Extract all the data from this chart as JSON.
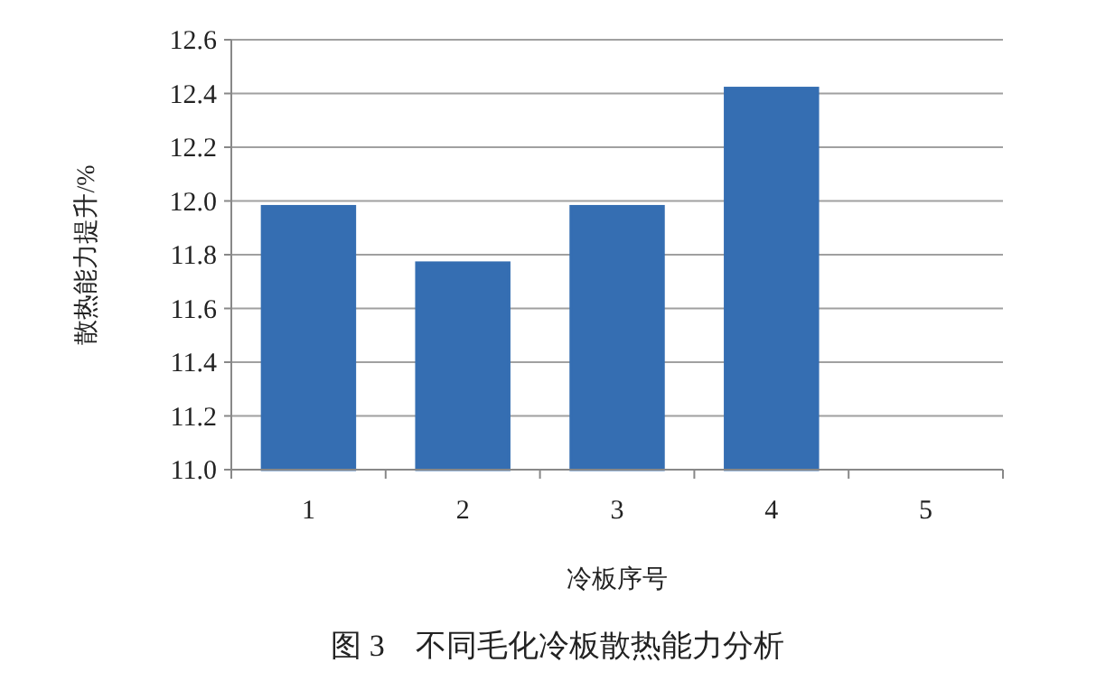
{
  "chart_data": {
    "type": "bar",
    "title": "图 3　不同毛化冷板散热能力分析",
    "xlabel": "冷板序号",
    "ylabel": "散热能力提升/%",
    "categories": [
      "1",
      "2",
      "3",
      "4",
      "5"
    ],
    "values": [
      11.98,
      11.77,
      11.98,
      12.42,
      11.0
    ],
    "color": "#356eb2",
    "ylim": [
      11.0,
      12.6
    ],
    "yticks": [
      {
        "value": 11.0,
        "label": "11.0"
      },
      {
        "value": 11.2,
        "label": "11.2"
      },
      {
        "value": 11.4,
        "label": "11.4"
      },
      {
        "value": 11.6,
        "label": "11.6"
      },
      {
        "value": 11.8,
        "label": "11.8"
      },
      {
        "value": 12.0,
        "label": "12.0"
      },
      {
        "value": 12.2,
        "label": "12.2"
      },
      {
        "value": 12.4,
        "label": "12.4"
      },
      {
        "value": 12.6,
        "label": "12.6"
      }
    ],
    "grid": "y"
  }
}
